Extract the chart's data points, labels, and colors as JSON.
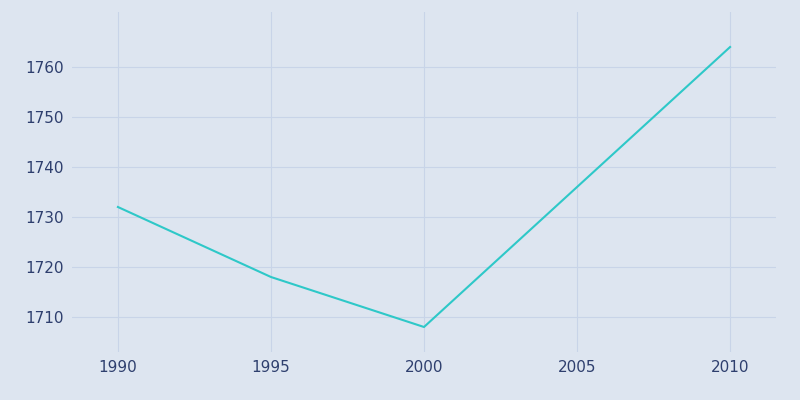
{
  "x": [
    1990,
    1995,
    2000,
    2010
  ],
  "y": [
    1732,
    1718,
    1708,
    1764
  ],
  "line_color": "#2ec8c8",
  "line_width": 1.5,
  "background_color": "#dde5f0",
  "axes_background_color": "#dde5f0",
  "xlabel": "",
  "ylabel": "",
  "xlim": [
    1988.5,
    2011.5
  ],
  "ylim": [
    1703,
    1771
  ],
  "xticks": [
    1990,
    1995,
    2000,
    2005,
    2010
  ],
  "yticks": [
    1710,
    1720,
    1730,
    1740,
    1750,
    1760
  ],
  "tick_color": "#2e3f6e",
  "grid_color": "#c8d4e8",
  "grid_linewidth": 0.8
}
